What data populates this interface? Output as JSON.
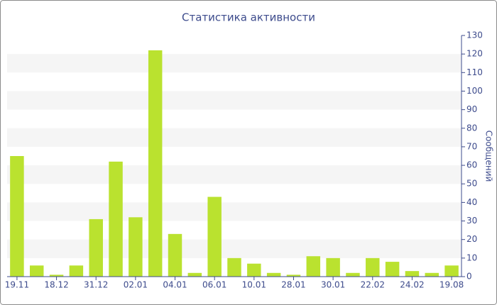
{
  "chart_data": {
    "type": "bar",
    "title": "Статистика активности",
    "y_axis_label": "Сообщений",
    "categories": [
      "19.11",
      null,
      "18.12",
      null,
      "31.12",
      null,
      "02.01",
      null,
      "04.01",
      null,
      "06.01",
      null,
      "10.01",
      null,
      "28.01",
      null,
      "30.01",
      null,
      "22.02",
      null,
      "24.02",
      null,
      "19.08"
    ],
    "values": [
      65,
      6,
      1,
      6,
      31,
      62,
      32,
      122,
      23,
      2,
      43,
      10,
      7,
      2,
      1,
      11,
      10,
      2,
      10,
      8,
      3,
      2,
      6
    ],
    "color": "#bae22f",
    "ylim": [
      0,
      130
    ],
    "yticks": [
      0,
      10,
      20,
      30,
      40,
      50,
      60,
      70,
      80,
      90,
      100,
      110,
      120,
      130
    ],
    "y_axis_side": "right",
    "grid": true
  }
}
